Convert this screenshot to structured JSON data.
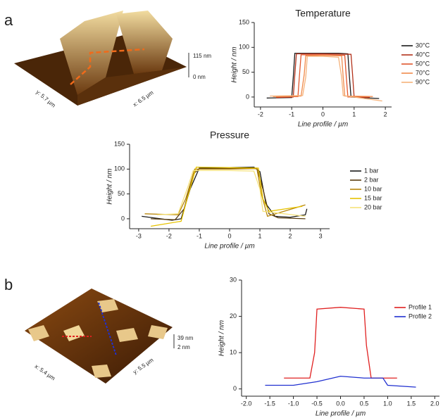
{
  "panels": [
    "a",
    "b"
  ],
  "afm_images": [
    {
      "labels": [
        "y: 5.7 µm",
        "x: 6.5 µm",
        "115 nm",
        "0 nm"
      ]
    },
    {
      "labels": [
        "x: 5.4 µm",
        "y: 5.5 µm",
        "39 nm",
        "2 nm"
      ]
    }
  ],
  "chart_data": [
    {
      "type": "line",
      "title": "Temperature",
      "x_label": "Line profile / µm",
      "y_label": "Height / nm",
      "xlim": [
        -2.2,
        2.2
      ],
      "xticks": [
        -2,
        -1,
        0,
        1,
        2
      ],
      "ylim": [
        -20,
        150
      ],
      "yticks": [
        0,
        50,
        100,
        150
      ],
      "legend": "right",
      "series": [
        {
          "name": "30°C",
          "color": "#1a1a1a",
          "x": [
            -1.8,
            -1.0,
            -0.95,
            -0.9,
            -0.5,
            0,
            0.5,
            0.8,
            0.85,
            0.9,
            1.8
          ],
          "values": [
            -2,
            -1,
            40,
            88,
            88,
            88,
            88,
            87,
            40,
            0,
            -3
          ]
        },
        {
          "name": "40°C",
          "color": "#b3321b",
          "x": [
            -1.5,
            -0.95,
            -0.9,
            -0.85,
            0,
            0.9,
            0.95,
            1.0,
            1.5
          ],
          "values": [
            -1,
            0,
            45,
            87,
            87,
            86,
            45,
            0,
            -1
          ]
        },
        {
          "name": "50°C",
          "color": "#e0552c",
          "x": [
            -1.5,
            -0.8,
            -0.75,
            -0.7,
            0,
            0.7,
            0.75,
            0.8,
            1.5
          ],
          "values": [
            0,
            1,
            45,
            85,
            85,
            84,
            40,
            0,
            1
          ]
        },
        {
          "name": "70°C",
          "color": "#f08a4b",
          "x": [
            -1.6,
            -0.7,
            -0.6,
            -0.55,
            0,
            0.6,
            0.65,
            0.7,
            1.6
          ],
          "values": [
            1,
            2,
            45,
            83,
            84,
            83,
            40,
            2,
            1
          ]
        },
        {
          "name": "90°C",
          "color": "#f5b27a",
          "x": [
            -1.7,
            -0.65,
            -0.55,
            -0.5,
            0,
            0.5,
            0.6,
            0.65,
            1.9
          ],
          "values": [
            2,
            3,
            40,
            82,
            82,
            80,
            40,
            3,
            -8
          ]
        }
      ]
    },
    {
      "type": "line",
      "title": "Pressure",
      "x_label": "Line profile / µm",
      "y_label": "Height / nm",
      "xlim": [
        -3.3,
        3.3
      ],
      "xticks": [
        -3,
        -2,
        -1,
        0,
        1,
        2,
        3
      ],
      "ylim": [
        -20,
        150
      ],
      "yticks": [
        0,
        50,
        100,
        150
      ],
      "legend": "right",
      "series": [
        {
          "name": "1 bar",
          "color": "#1a1a1a",
          "x": [
            -2.9,
            -1.9,
            -1.6,
            -1.3,
            -1.0,
            0,
            0.8,
            1.0,
            1.2,
            1.5,
            2.0,
            2.5,
            2.55
          ],
          "values": [
            5,
            -3,
            0,
            60,
            102,
            103,
            104,
            95,
            30,
            5,
            3,
            8,
            20
          ]
        },
        {
          "name": "2 bar",
          "color": "#5a3d10",
          "x": [
            -2.6,
            -1.8,
            -1.5,
            -1.2,
            -1.0,
            0,
            0.9,
            1.1,
            1.3,
            1.6,
            2.5
          ],
          "values": [
            0,
            -2,
            20,
            90,
            101,
            101,
            102,
            60,
            10,
            2,
            0
          ]
        },
        {
          "name": "10 bar",
          "color": "#b8860b",
          "x": [
            -2.8,
            -1.7,
            -1.45,
            -1.15,
            0,
            0.9,
            1.05,
            1.25,
            2.5
          ],
          "values": [
            10,
            8,
            40,
            100,
            100,
            101,
            50,
            5,
            28
          ]
        },
        {
          "name": "15 bar",
          "color": "#e6c200",
          "x": [
            -2.6,
            -1.6,
            -1.4,
            -1.1,
            0,
            0.95,
            1.1,
            1.3,
            2.4
          ],
          "values": [
            -15,
            -5,
            40,
            104,
            103,
            102,
            40,
            15,
            25
          ]
        },
        {
          "name": "20 bar",
          "color": "#f5e27a",
          "x": [
            -2.4,
            -1.7,
            -1.4,
            -1.2,
            0,
            0.8,
            1.0,
            1.1,
            2.5
          ],
          "values": [
            8,
            10,
            60,
            97,
            97,
            96,
            60,
            15,
            5
          ]
        }
      ]
    },
    {
      "type": "line",
      "x_label": "Line profile / µm",
      "y_label": "Height / nm",
      "xlim": [
        -2.1,
        2.1
      ],
      "xticks": [
        {
          "value": -2,
          "label": "-2.0"
        },
        {
          "value": -1.5,
          "label": "-1.5"
        },
        {
          "value": -1,
          "label": "-1.0"
        },
        {
          "value": -0.5,
          "label": "-0.5"
        },
        {
          "value": 0,
          "label": "0.0"
        },
        {
          "value": 0.5,
          "label": "0.5"
        },
        {
          "value": 1,
          "label": "1.0"
        },
        {
          "value": 1.5,
          "label": "1.5"
        },
        {
          "value": 2,
          "label": "2.0"
        }
      ],
      "ylim": [
        -2,
        30
      ],
      "yticks": [
        0,
        10,
        20,
        30
      ],
      "legend": "upper right",
      "series": [
        {
          "name": "Profile 1",
          "color": "#e02020",
          "x": [
            -1.2,
            -0.65,
            -0.55,
            -0.5,
            0,
            0.5,
            0.55,
            0.65,
            1.2
          ],
          "values": [
            3,
            3,
            10,
            22,
            22.5,
            22,
            12,
            3,
            3
          ]
        },
        {
          "name": "Profile 2",
          "color": "#2030d0",
          "x": [
            -1.6,
            -1.0,
            -0.5,
            0,
            0.5,
            0.9,
            1.0,
            1.6
          ],
          "values": [
            1,
            1,
            2,
            3.5,
            3,
            3,
            1,
            0.5
          ]
        }
      ]
    }
  ]
}
